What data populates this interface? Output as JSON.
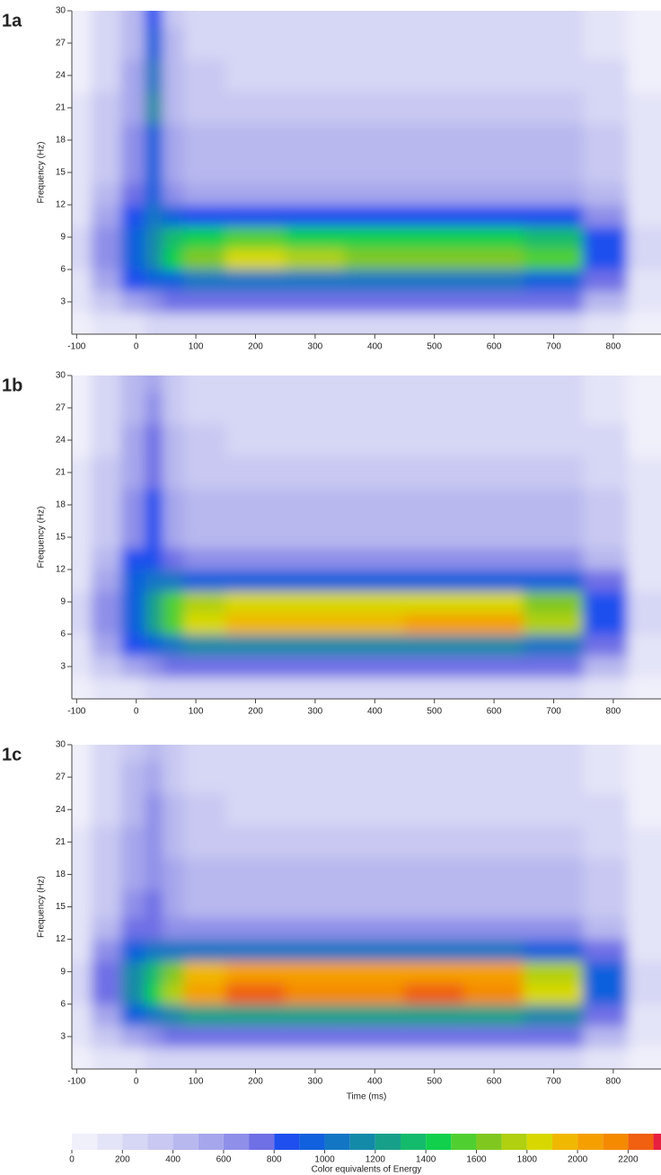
{
  "chart_data": [
    {
      "type": "heatmap",
      "title": "1a",
      "ylabel": "Frequency (Hz)",
      "x": [
        -100,
        -50,
        0,
        30,
        60,
        100,
        200,
        300,
        400,
        500,
        600,
        700,
        800,
        850
      ],
      "y": [
        1,
        3,
        5,
        7,
        9,
        11,
        13,
        15,
        18,
        21,
        24,
        27,
        30
      ],
      "z": [
        [
          50,
          100,
          150,
          200,
          200,
          200,
          200,
          200,
          200,
          200,
          200,
          200,
          150,
          50
        ],
        [
          100,
          300,
          500,
          650,
          700,
          700,
          750,
          750,
          750,
          750,
          750,
          700,
          400,
          100
        ],
        [
          150,
          500,
          800,
          900,
          950,
          1000,
          1050,
          1050,
          1050,
          1050,
          1000,
          950,
          700,
          150
        ],
        [
          200,
          600,
          900,
          1100,
          1400,
          1600,
          1800,
          1750,
          1650,
          1650,
          1650,
          1500,
          800,
          200
        ],
        [
          200,
          600,
          900,
          1100,
          1300,
          1400,
          1500,
          1450,
          1400,
          1400,
          1400,
          1300,
          800,
          200
        ],
        [
          150,
          500,
          850,
          1000,
          900,
          850,
          850,
          850,
          850,
          850,
          850,
          850,
          650,
          150
        ],
        [
          150,
          400,
          750,
          900,
          650,
          550,
          550,
          550,
          550,
          550,
          550,
          550,
          450,
          150
        ],
        [
          100,
          350,
          650,
          900,
          550,
          450,
          450,
          450,
          450,
          450,
          450,
          450,
          350,
          100
        ],
        [
          100,
          300,
          600,
          950,
          500,
          400,
          400,
          400,
          400,
          400,
          400,
          400,
          300,
          100
        ],
        [
          100,
          300,
          550,
          1100,
          450,
          350,
          300,
          300,
          300,
          300,
          300,
          300,
          250,
          100
        ],
        [
          50,
          250,
          500,
          1000,
          450,
          300,
          250,
          250,
          250,
          250,
          250,
          250,
          200,
          50
        ],
        [
          50,
          200,
          450,
          900,
          400,
          250,
          200,
          200,
          200,
          200,
          200,
          200,
          150,
          50
        ],
        [
          50,
          200,
          400,
          850,
          350,
          200,
          200,
          200,
          200,
          200,
          200,
          200,
          150,
          50
        ]
      ],
      "xlim": [
        -108,
        880
      ],
      "ylim": [
        0,
        30
      ],
      "xticks": [
        -100,
        0,
        100,
        200,
        300,
        400,
        500,
        600,
        700,
        800
      ],
      "yticks": [
        3,
        6,
        9,
        12,
        15,
        18,
        21,
        24,
        27,
        30
      ]
    },
    {
      "type": "heatmap",
      "title": "1b",
      "ylabel": "Frequency (Hz)",
      "x": [
        -100,
        -50,
        0,
        30,
        60,
        100,
        200,
        300,
        400,
        500,
        600,
        700,
        800,
        850
      ],
      "y": [
        1,
        3,
        5,
        7,
        9,
        11,
        13,
        15,
        18,
        21,
        24,
        27,
        30
      ],
      "z": [
        [
          50,
          100,
          150,
          200,
          200,
          200,
          200,
          200,
          200,
          200,
          200,
          200,
          150,
          50
        ],
        [
          100,
          300,
          500,
          650,
          700,
          750,
          750,
          750,
          750,
          750,
          750,
          700,
          400,
          100
        ],
        [
          150,
          500,
          850,
          950,
          1000,
          1100,
          1150,
          1150,
          1150,
          1150,
          1150,
          1050,
          700,
          150
        ],
        [
          200,
          650,
          950,
          1200,
          1500,
          1800,
          1900,
          1900,
          1900,
          2000,
          2000,
          1700,
          850,
          200
        ],
        [
          200,
          650,
          950,
          1200,
          1500,
          1700,
          1800,
          1800,
          1800,
          1800,
          1800,
          1600,
          850,
          200
        ],
        [
          150,
          550,
          900,
          1000,
          1000,
          900,
          900,
          900,
          900,
          900,
          900,
          900,
          700,
          150
        ],
        [
          150,
          450,
          800,
          850,
          700,
          600,
          600,
          600,
          600,
          600,
          600,
          600,
          450,
          150
        ],
        [
          100,
          350,
          650,
          850,
          550,
          450,
          450,
          450,
          450,
          450,
          450,
          450,
          350,
          100
        ],
        [
          100,
          300,
          600,
          800,
          500,
          400,
          400,
          400,
          400,
          400,
          400,
          400,
          300,
          100
        ],
        [
          100,
          300,
          550,
          750,
          450,
          350,
          300,
          300,
          300,
          300,
          300,
          300,
          250,
          100
        ],
        [
          50,
          250,
          500,
          750,
          400,
          300,
          250,
          250,
          250,
          250,
          250,
          250,
          200,
          50
        ],
        [
          50,
          200,
          450,
          650,
          350,
          250,
          200,
          200,
          200,
          200,
          200,
          200,
          150,
          50
        ],
        [
          50,
          200,
          400,
          550,
          300,
          200,
          200,
          200,
          200,
          200,
          200,
          200,
          150,
          50
        ]
      ],
      "xlim": [
        -108,
        880
      ],
      "ylim": [
        0,
        30
      ],
      "xticks": [
        -100,
        0,
        100,
        200,
        300,
        400,
        500,
        600,
        700,
        800
      ],
      "yticks": [
        3,
        6,
        9,
        12,
        15,
        18,
        21,
        24,
        27,
        30
      ]
    },
    {
      "type": "heatmap",
      "title": "1c",
      "ylabel": "Frequency (Hz)",
      "xlabel": "Time (ms)",
      "x": [
        -100,
        -50,
        0,
        30,
        60,
        100,
        200,
        300,
        400,
        500,
        600,
        700,
        800,
        850
      ],
      "y": [
        1,
        3,
        5,
        7,
        9,
        11,
        13,
        15,
        18,
        21,
        24,
        27,
        30
      ],
      "z": [
        [
          50,
          100,
          150,
          200,
          200,
          200,
          200,
          200,
          200,
          200,
          200,
          200,
          150,
          50
        ],
        [
          100,
          300,
          500,
          650,
          700,
          750,
          750,
          750,
          750,
          750,
          750,
          700,
          400,
          100
        ],
        [
          150,
          550,
          900,
          1000,
          1100,
          1200,
          1250,
          1250,
          1250,
          1250,
          1250,
          1150,
          700,
          150
        ],
        [
          200,
          700,
          1100,
          1400,
          1700,
          2000,
          2200,
          2100,
          2100,
          2200,
          2100,
          1800,
          900,
          200
        ],
        [
          200,
          700,
          1100,
          1300,
          1600,
          1900,
          2000,
          2000,
          2000,
          2000,
          2000,
          1700,
          900,
          200
        ],
        [
          150,
          600,
          950,
          1000,
          1000,
          1000,
          1000,
          1000,
          1000,
          1000,
          1000,
          950,
          750,
          150
        ],
        [
          150,
          450,
          750,
          750,
          650,
          600,
          600,
          600,
          600,
          600,
          600,
          600,
          450,
          150
        ],
        [
          100,
          350,
          600,
          700,
          550,
          450,
          450,
          450,
          450,
          450,
          450,
          450,
          350,
          100
        ],
        [
          100,
          300,
          550,
          650,
          500,
          400,
          400,
          400,
          400,
          400,
          400,
          400,
          300,
          100
        ],
        [
          100,
          300,
          500,
          600,
          450,
          350,
          300,
          300,
          300,
          300,
          300,
          300,
          250,
          100
        ],
        [
          50,
          250,
          450,
          600,
          400,
          300,
          250,
          250,
          250,
          250,
          250,
          250,
          200,
          50
        ],
        [
          50,
          200,
          400,
          550,
          350,
          250,
          200,
          200,
          200,
          200,
          200,
          200,
          150,
          50
        ],
        [
          50,
          200,
          350,
          450,
          300,
          200,
          200,
          200,
          200,
          200,
          200,
          200,
          150,
          50
        ]
      ],
      "xlim": [
        -108,
        880
      ],
      "ylim": [
        0,
        30
      ],
      "xticks": [
        -100,
        0,
        100,
        200,
        300,
        400,
        500,
        600,
        700,
        800
      ],
      "yticks": [
        3,
        6,
        9,
        12,
        15,
        18,
        21,
        24,
        27,
        30
      ]
    },
    {
      "type": "colorbar",
      "xlabel": "Color equivalents of Energy",
      "levels": [
        0,
        100,
        200,
        300,
        400,
        500,
        600,
        700,
        800,
        900,
        1000,
        1100,
        1200,
        1300,
        1400,
        1500,
        1600,
        1700,
        1800,
        1900,
        2000,
        2100,
        2200,
        2300,
        2400
      ],
      "colors": [
        "#f0f0fb",
        "#e4e4f8",
        "#d6d6f5",
        "#c8c8f2",
        "#b8b8ef",
        "#a6a6ec",
        "#8f8fe9",
        "#6f6fe6",
        "#1f4fee",
        "#1160dd",
        "#1276c4",
        "#138aa8",
        "#16a08a",
        "#15bb6c",
        "#10d04c",
        "#50d030",
        "#80c820",
        "#b0d010",
        "#d8d800",
        "#f0b800",
        "#f5a000",
        "#f58a00",
        "#f06010",
        "#e82040"
      ],
      "xlim": [
        0,
        2330
      ],
      "xticks": [
        0,
        200,
        400,
        600,
        800,
        1000,
        1200,
        1400,
        1600,
        1800,
        2000,
        2200
      ]
    }
  ]
}
